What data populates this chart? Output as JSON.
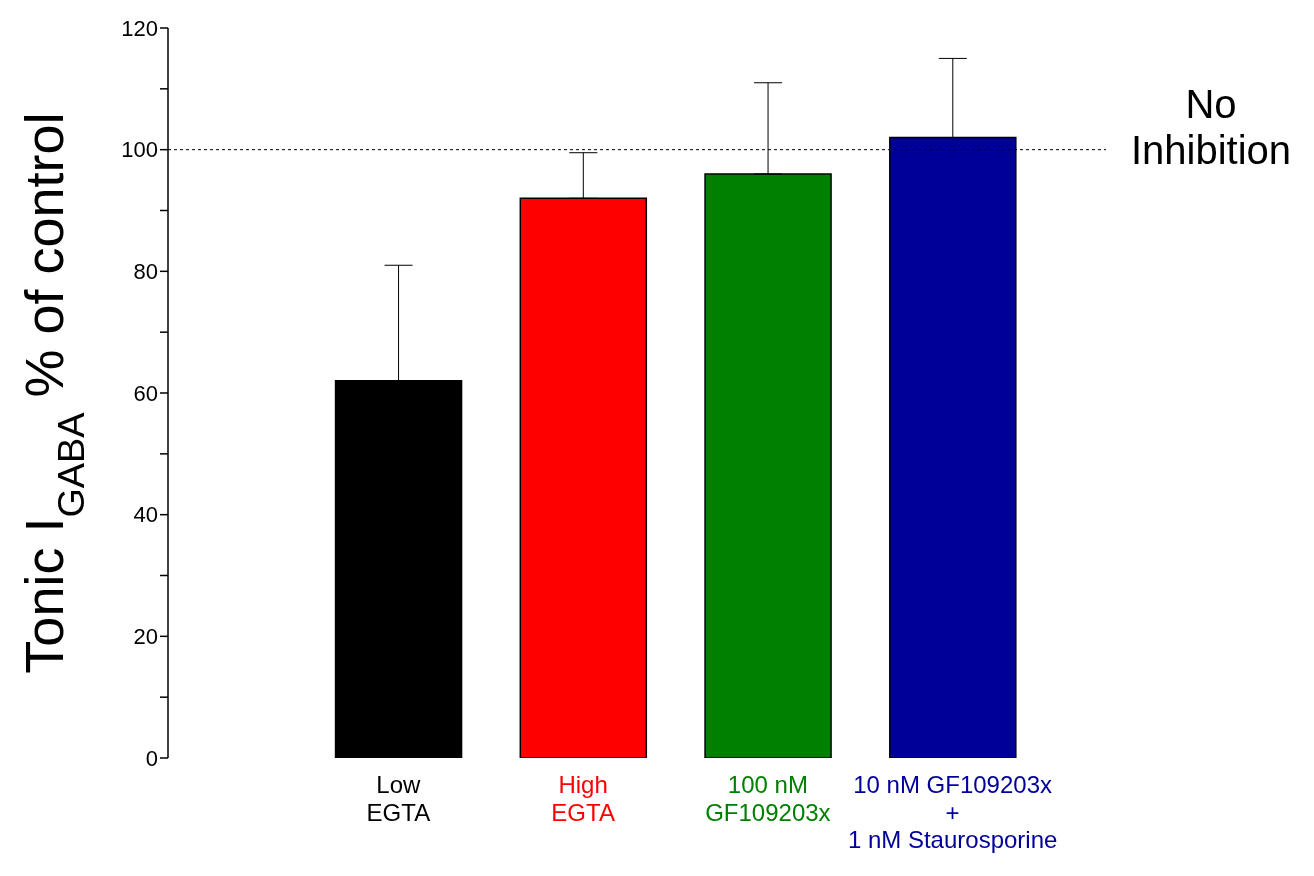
{
  "chart_data": {
    "type": "bar",
    "ylabel": "Tonic I$_{GABA}$ % of control",
    "categories": [
      "Low\nEGTA",
      "High\nEGTA",
      "100 nM\nGF109203x",
      "10 nM GF109203x\n+\n1 nM Staurosporine"
    ],
    "values": [
      62,
      92,
      96,
      102
    ],
    "colors": [
      "#000000",
      "#ff0000",
      "#008000",
      "#000099"
    ],
    "errors": [
      [
        62,
        81
      ],
      [
        92,
        99.5
      ],
      [
        96,
        111
      ],
      [
        102,
        115
      ]
    ],
    "ylim": [
      0,
      120
    ],
    "yticks": [
      0,
      {
        "value": 10,
        "label": null
      },
      20,
      {
        "value": 30,
        "label": null
      },
      40,
      {
        "value": 50,
        "label": null
      },
      60,
      {
        "value": 70,
        "label": null
      },
      80,
      {
        "value": 90,
        "label": null
      },
      100,
      {
        "value": 110,
        "label": null
      },
      120
    ],
    "ref_lines": [
      {
        "axis": "y",
        "value": 100,
        "label": "No\nInhibition",
        "color": "#000000",
        "line_style": "dotted"
      }
    ]
  }
}
